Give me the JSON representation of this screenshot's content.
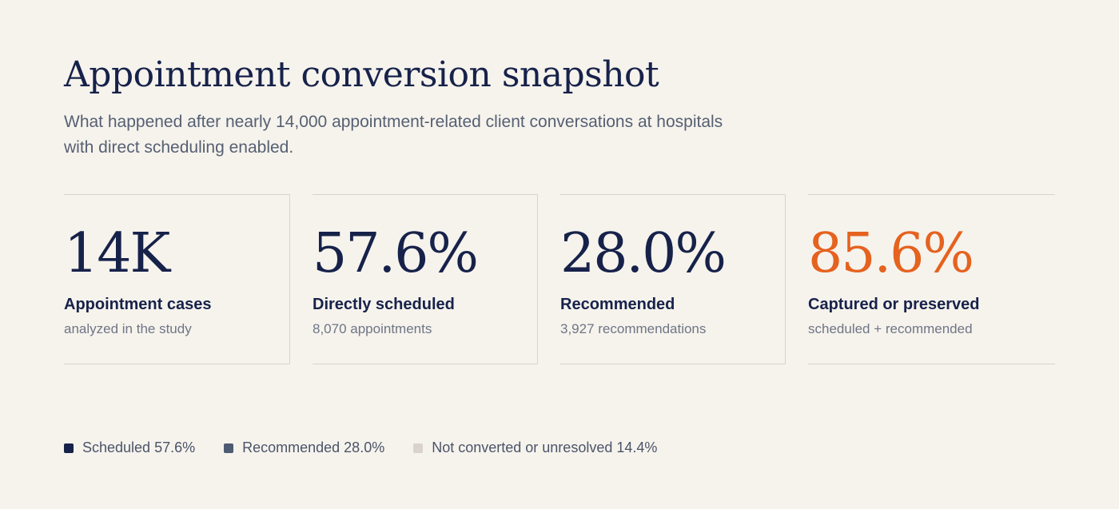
{
  "header": {
    "title": "Appointment conversion snapshot",
    "subtitle": "What happened after nearly 14,000 appointment-related client conversations at hospitals with direct scheduling enabled."
  },
  "stats": [
    {
      "value": "14K",
      "label": "Appointment cases",
      "sublabel": "analyzed in the study",
      "accent": false
    },
    {
      "value": "57.6%",
      "label": "Directly scheduled",
      "sublabel": "8,070 appointments",
      "accent": false
    },
    {
      "value": "28.0%",
      "label": "Recommended",
      "sublabel": "3,927 recommendations",
      "accent": false
    },
    {
      "value": "85.6%",
      "label": "Captured or preserved",
      "sublabel": "scheduled + recommended",
      "accent": true
    }
  ],
  "legend": [
    {
      "label": "Scheduled 57.6%",
      "color": "#17224a"
    },
    {
      "label": "Recommended 28.0%",
      "color": "#4f5b72"
    },
    {
      "label": "Not converted or unresolved 14.4%",
      "color": "#d9d3cc"
    }
  ],
  "colors": {
    "accent": "#e5621f",
    "primary": "#17224a"
  },
  "chart_data": {
    "type": "table",
    "categories": [
      "Scheduled",
      "Recommended",
      "Not converted or unresolved"
    ],
    "values": [
      57.6,
      28.0,
      14.4
    ],
    "title": "Appointment conversion snapshot"
  }
}
